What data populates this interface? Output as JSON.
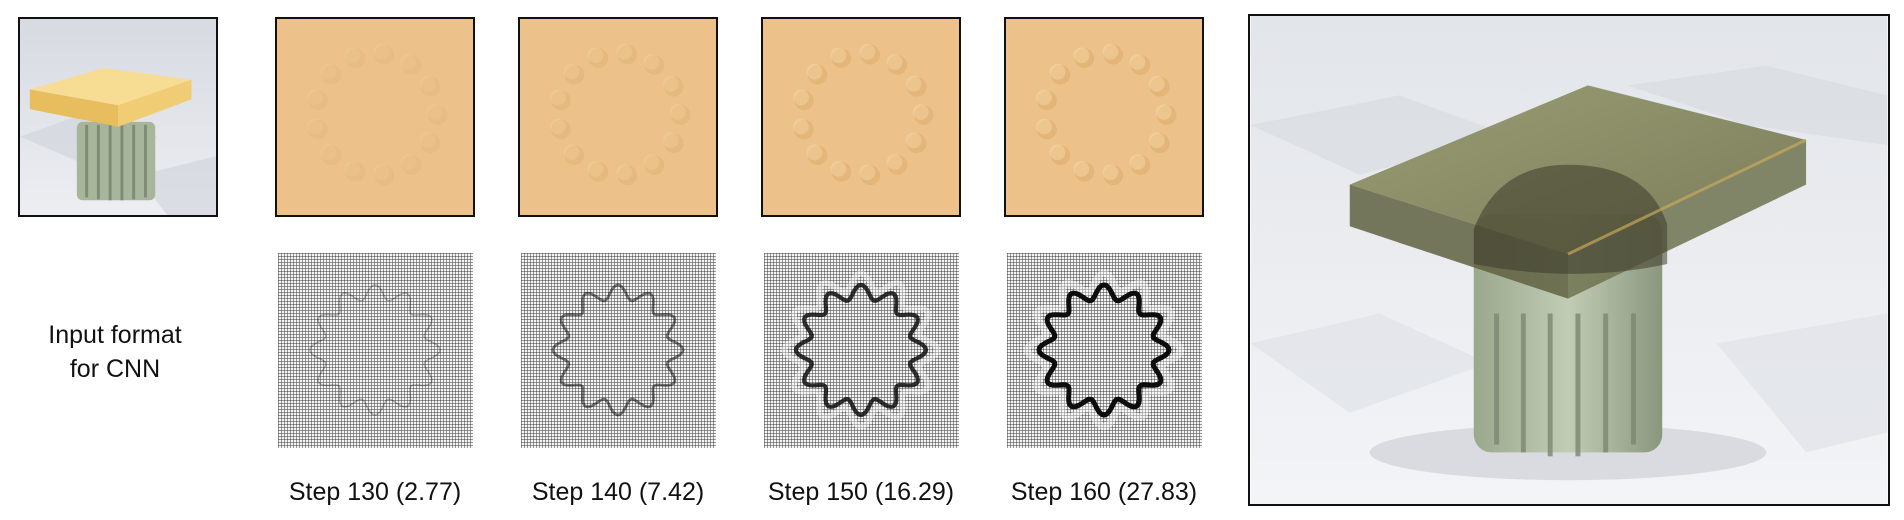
{
  "figure": {
    "input_label_line1": "Input format",
    "input_label_line2": "for CNN",
    "steps": [
      {
        "label": "Step 130 (2.77)",
        "intensity": 0.15
      },
      {
        "label": "Step 140 (7.42)",
        "intensity": 0.45
      },
      {
        "label": "Step 150 (16.29)",
        "intensity": 0.8
      },
      {
        "label": "Step 160 (27.83)",
        "intensity": 1.0
      }
    ],
    "colors": {
      "heightmap": "#ecc28a",
      "slab": "#f4d387",
      "floor_light": "#eef0f3",
      "floor_dark": "#d8dbe1",
      "pillar": "#a7b59a"
    }
  }
}
